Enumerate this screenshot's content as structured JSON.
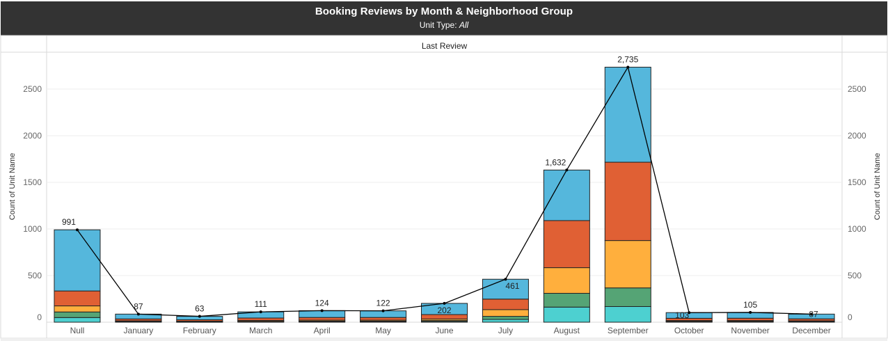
{
  "header": {
    "title": "Booking Reviews by Month & Neighborhood Group",
    "subtitle_prefix": "Unit Type: ",
    "subtitle_value": "All"
  },
  "chart_data": {
    "type": "bar",
    "stacked": true,
    "facet_label": "Last Review",
    "ylabel": "Count of Unit Name",
    "ylabel_right": "Count of Unit Name",
    "ylim": [
      0,
      2800
    ],
    "yticks": [
      0,
      500,
      1000,
      1500,
      2000,
      2500
    ],
    "grid": true,
    "categories": [
      "Null",
      "January",
      "February",
      "March",
      "April",
      "May",
      "June",
      "July",
      "August",
      "September",
      "October",
      "November",
      "December"
    ],
    "totals": [
      991,
      87,
      63,
      111,
      124,
      122,
      202,
      461,
      1632,
      2735,
      103,
      105,
      87
    ],
    "total_labels": [
      "991",
      "87",
      "63",
      "111",
      "124",
      "122",
      "202",
      "461",
      "1,632",
      "2,735",
      "103",
      "105",
      "87"
    ],
    "series": [
      {
        "color": "#4DD0D0",
        "values": [
          50,
          4,
          3,
          5,
          6,
          6,
          9,
          30,
          162,
          168,
          5,
          5,
          4
        ]
      },
      {
        "color": "#55A475",
        "values": [
          60,
          4,
          3,
          5,
          6,
          6,
          9,
          33,
          148,
          200,
          5,
          5,
          4
        ]
      },
      {
        "color": "#FFAF3D",
        "values": [
          65,
          7,
          5,
          9,
          10,
          10,
          16,
          72,
          275,
          508,
          8,
          8,
          7
        ]
      },
      {
        "color": "#E06034",
        "values": [
          160,
          20,
          15,
          26,
          29,
          29,
          48,
          113,
          505,
          840,
          24,
          25,
          21
        ]
      },
      {
        "color": "#55B7DC",
        "values": [
          656,
          52,
          37,
          66,
          73,
          71,
          120,
          213,
          542,
          1019,
          61,
          62,
          51
        ]
      }
    ],
    "line": {
      "color": "#000000",
      "values": [
        991,
        87,
        63,
        111,
        124,
        122,
        202,
        461,
        1632,
        2735,
        103,
        105,
        87
      ]
    }
  }
}
